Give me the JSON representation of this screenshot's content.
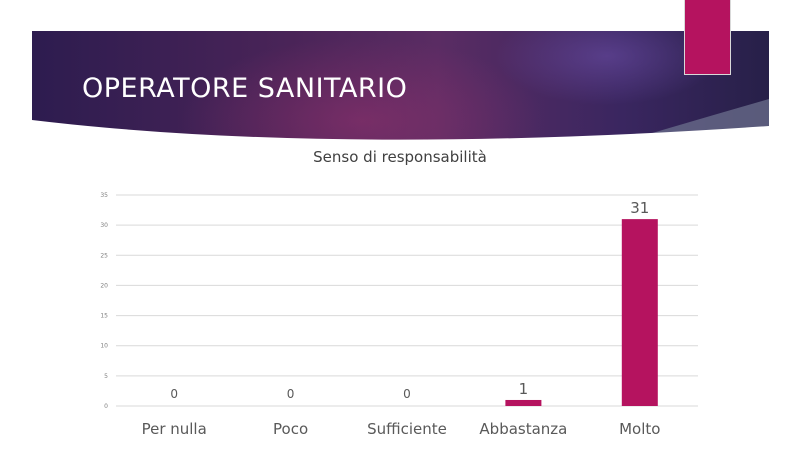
{
  "slide": {
    "title": "OPERATORE SANITARIO"
  },
  "colors": {
    "accent": "#b5135f",
    "banner_dark": "#2d1c4f",
    "banner_mid": "#5a2c63",
    "gridline": "#d9d9d9",
    "label_text": "#595959"
  },
  "chart_data": {
    "type": "bar",
    "title": "Senso di responsabilità",
    "categories": [
      "Per nulla",
      "Poco",
      "Sufficiente",
      "Abbastanza",
      "Molto"
    ],
    "values": [
      0,
      0,
      0,
      1,
      31
    ],
    "xlabel": "",
    "ylabel": "",
    "ylim": [
      0,
      35
    ],
    "yticks": [
      0,
      5,
      10,
      15,
      20,
      25,
      30,
      35
    ],
    "grid": true,
    "legend": "none",
    "bar_color": "#b5135f"
  }
}
